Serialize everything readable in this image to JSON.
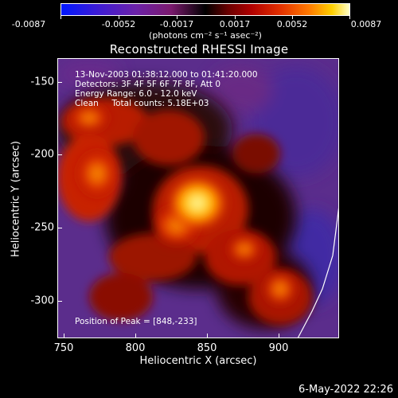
{
  "colorbar": {
    "tick_labels": [
      "-0.0087",
      "-0.0052",
      "-0.0017",
      "0.0017",
      "0.0052",
      "0.0087"
    ],
    "units": "(photons cm⁻² s⁻¹ asec⁻²)"
  },
  "title": "Reconstructed RHESSI Image",
  "info": {
    "time_range": "13-Nov-2003 01:38:12.000 to 01:41:20.000",
    "detectors": "Detectors: 3F 4F 5F 6F 7F 8F, Att 0",
    "energy_range": "Energy Range: 6.0 - 12.0 keV",
    "clean_counts": "Clean     Total counts: 5.18E+03",
    "peak": "Position of Peak = [848,-233]"
  },
  "axes": {
    "xlabel": "Heliocentric X (arcsec)",
    "ylabel": "Heliocentric Y (arcsec)",
    "xticks": [
      "750",
      "800",
      "850",
      "900"
    ],
    "yticks": [
      "-150",
      "-200",
      "-250",
      "-300"
    ]
  },
  "footer": {
    "date": "6-May-2022 22:26"
  },
  "colors": {
    "background": "#000000",
    "negative": "#5a2a8a",
    "positive_high": "#ffffc8",
    "limb": "#ffffff"
  }
}
